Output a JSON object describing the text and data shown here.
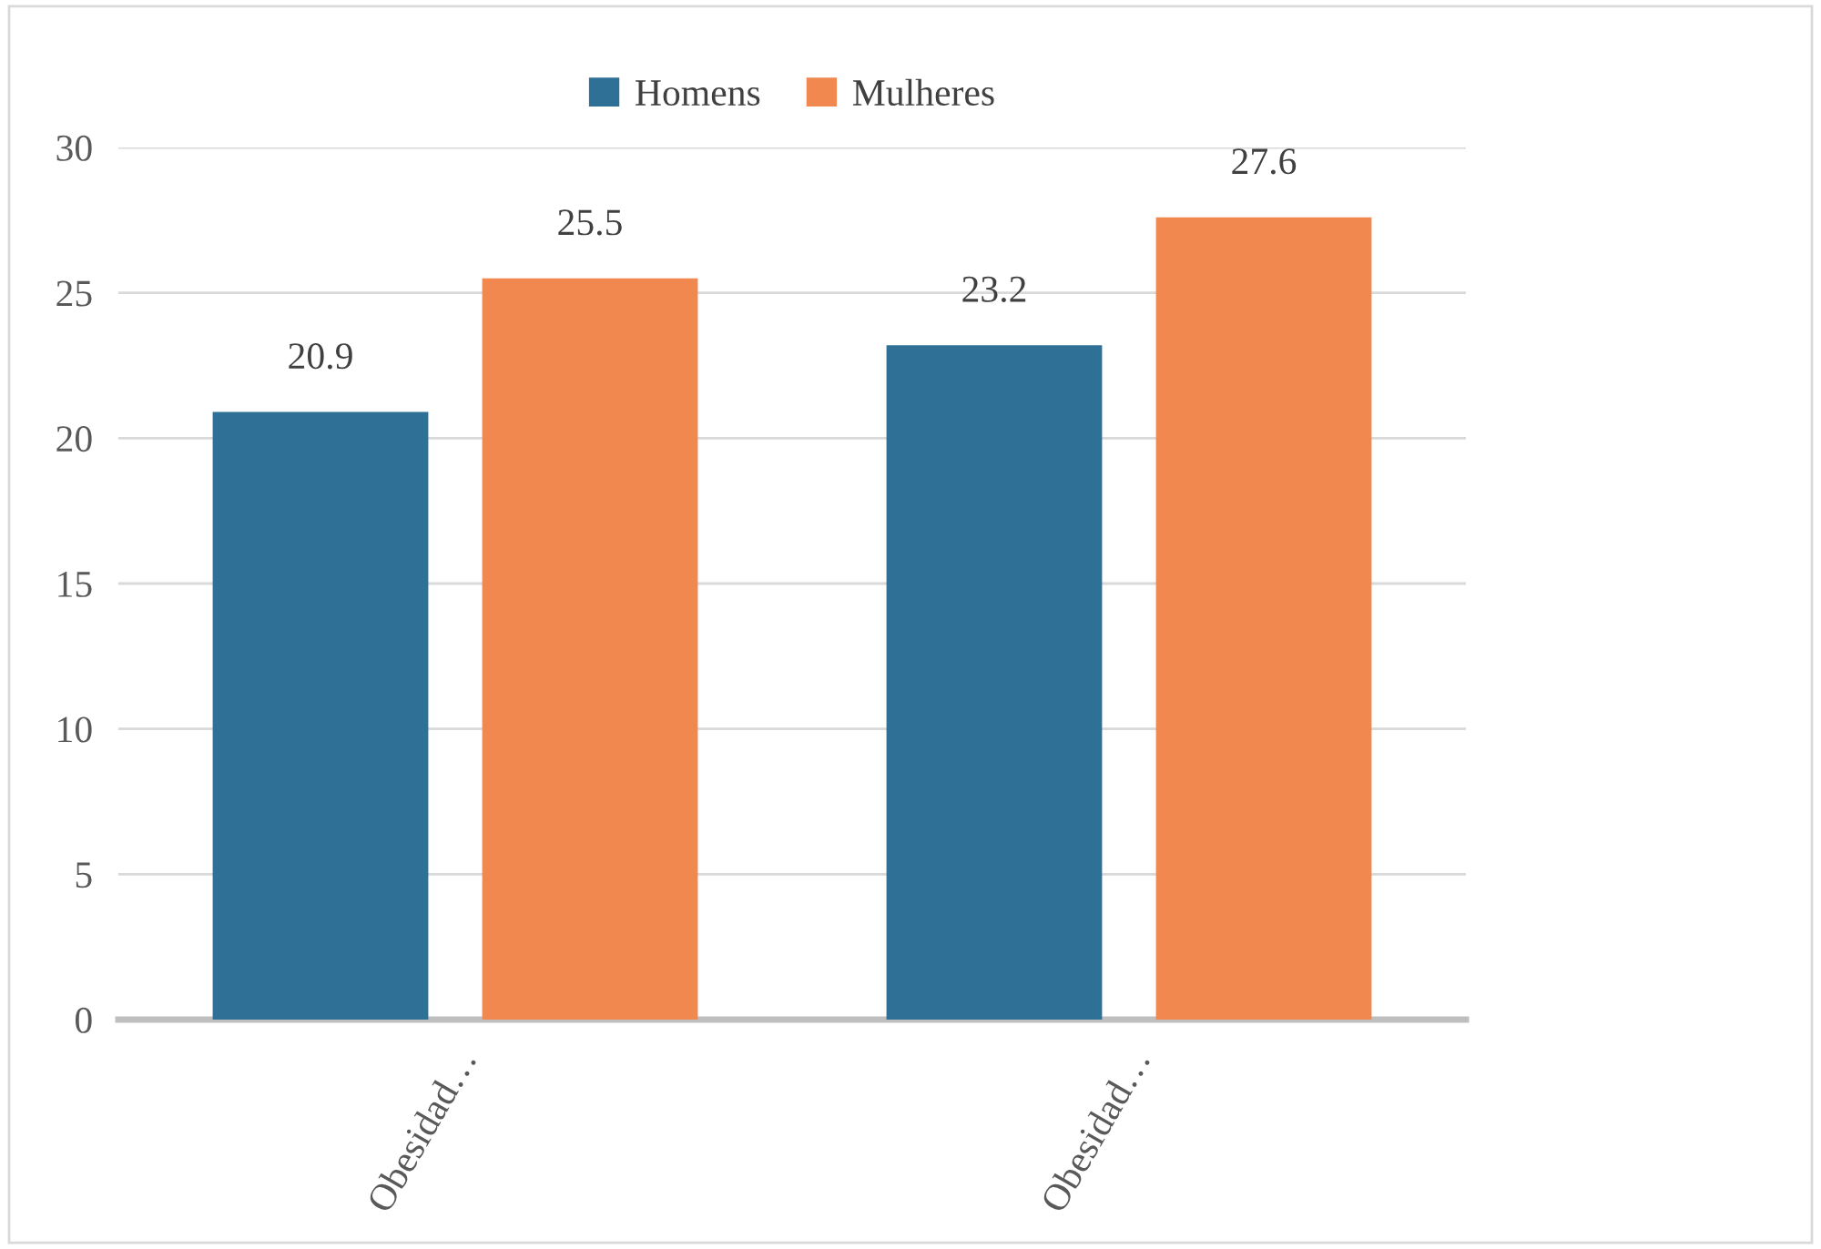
{
  "chart_data": {
    "type": "bar",
    "categories": [
      "Obesidad…",
      "Obesidad…"
    ],
    "series": [
      {
        "name": "Homens",
        "color": "#2f7196",
        "values": [
          20.9,
          23.2
        ]
      },
      {
        "name": "Mulheres",
        "color": "#f0884f",
        "values": [
          25.5,
          27.6
        ]
      }
    ],
    "ylim": [
      0,
      30
    ],
    "yticks": [
      0,
      5,
      10,
      15,
      20,
      25,
      30
    ],
    "grid": "y",
    "legend": "top",
    "data_labels": true
  }
}
